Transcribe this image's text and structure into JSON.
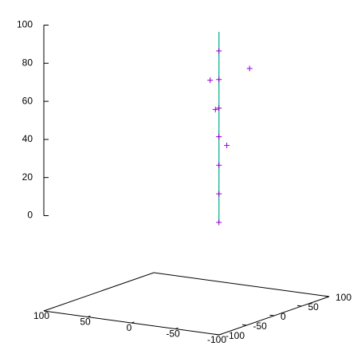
{
  "chart_data": {
    "type": "scatter3d",
    "xlim": [
      -100,
      100
    ],
    "ylim": [
      -100,
      100
    ],
    "zlim": [
      0,
      100
    ],
    "xticks": [
      100,
      50,
      0,
      -50,
      -100
    ],
    "yticks": [
      -100,
      -50,
      0,
      50,
      100
    ],
    "zticks": [
      0,
      20,
      40,
      60,
      80,
      100
    ],
    "ticslevel": 0.5,
    "series": [
      {
        "kind": "line",
        "color": "#2eb89a",
        "x": [
          -37,
          -37
        ],
        "y": [
          0,
          0
        ],
        "z": [
          -5,
          95
        ]
      },
      {
        "kind": "points",
        "color": "#9400d3",
        "x": [
          -37,
          -37,
          -37,
          -37,
          -37,
          -37,
          -37,
          -27,
          -72,
          -33,
          -46
        ],
        "y": [
          0,
          0,
          0,
          0,
          0,
          0,
          0,
          0,
          0,
          0,
          0
        ],
        "z": [
          -5,
          10,
          25,
          40,
          55,
          70,
          85,
          69,
          78,
          54,
          36
        ]
      }
    ]
  }
}
